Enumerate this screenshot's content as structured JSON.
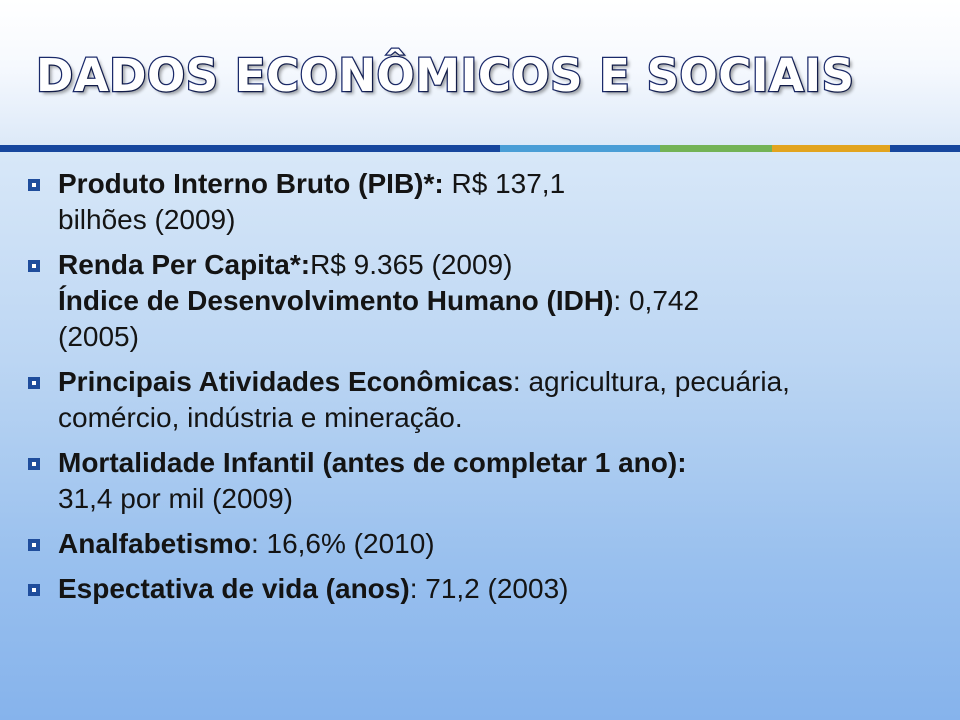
{
  "slide": {
    "title": "DADOS ECONÔMICOS E SOCIAIS"
  },
  "accent_bar": {
    "colors": [
      "#17479e",
      "#4a9ed6",
      "#73b356",
      "#e2a41f",
      "#17479e"
    ]
  },
  "bullet_icon": "square-bullet-icon",
  "bullets": [
    {
      "bold": "Produto Interno Bruto (PIB)*:",
      "text": " R$ 137,1",
      "line2": "bilhões  (2009)"
    },
    {
      "bold": "Renda Per Capita*:",
      "text": "R$ 9.365 (2009)",
      "line2_bold": "Índice de Desenvolvimento Humano (IDH)",
      "line2_text": ": 0,742",
      "line3": "(2005)"
    },
    {
      "bold": "Principais Atividades Econômicas",
      "text": ": agricultura, pecuária,",
      "line2": "comércio, indústria e mineração."
    },
    {
      "bold": "Mortalidade Infantil (antes de completar 1 ano):",
      "line2": "31,4 por mil (2009)"
    },
    {
      "bold": "Analfabetismo",
      "text": ": 16,6% (2010)"
    },
    {
      "bold": "Espectativa de vida (anos)",
      "text": ": 71,2 (2003)"
    }
  ]
}
